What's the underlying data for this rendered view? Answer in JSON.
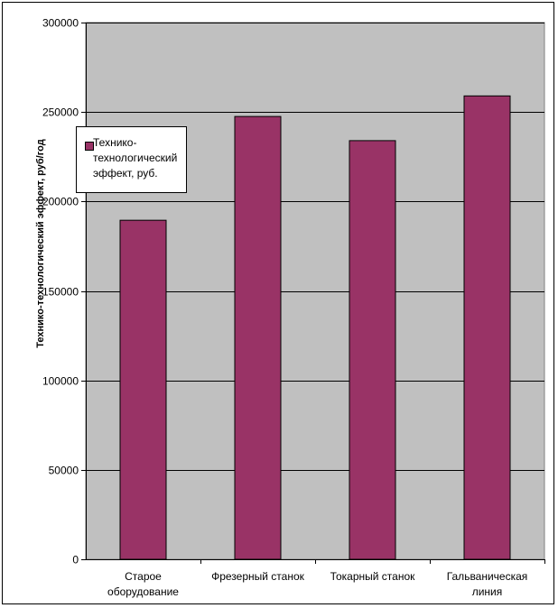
{
  "chart_data": {
    "type": "bar",
    "title": "",
    "xlabel": "",
    "ylabel": "Технико-технологический эффект, руб/год",
    "categories": [
      [
        "Старое",
        "оборудование"
      ],
      [
        "Фрезерный станок"
      ],
      [
        "Токарный станок"
      ],
      [
        "Гальваническая",
        "линия"
      ]
    ],
    "series": [
      {
        "name": "Технико-технологический эффект, руб.",
        "values": [
          189500,
          247500,
          234000,
          259000
        ],
        "color": "#993366"
      }
    ],
    "ylim": [
      0,
      300000
    ],
    "yticks": [
      "0",
      "50000",
      "100000",
      "150000",
      "200000",
      "250000",
      "300000"
    ],
    "grid": true,
    "legend_position": "top-left",
    "plot_background": "#c0c0c0"
  }
}
